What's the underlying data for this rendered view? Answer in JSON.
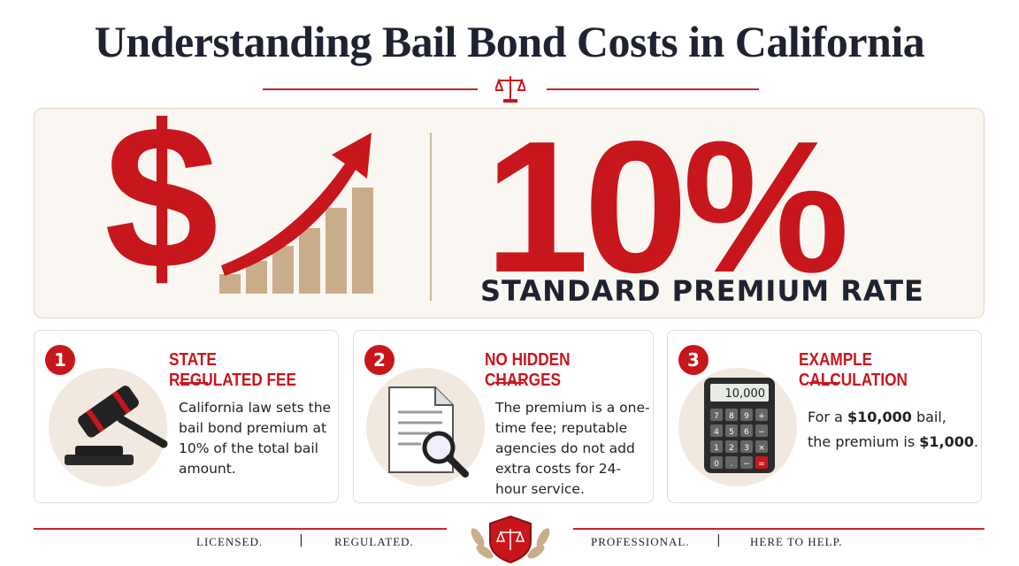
{
  "title": "Understanding Bail Bond Costs in California",
  "hero": {
    "symbol": "$",
    "rate": "10%",
    "caption": "STANDARD PREMIUM RATE"
  },
  "cards": [
    {
      "number": "1",
      "title": "STATE REGULATED FEE",
      "body": "California law sets the bail bond premium at 10% of the total bail amount."
    },
    {
      "number": "2",
      "title": "NO HIDDEN CHARGES",
      "body": "The premium is a one-time fee; reputable agencies do not add extra costs for 24-hour service."
    },
    {
      "number": "3",
      "title": "EXAMPLE CALCULATION",
      "body_parts": [
        "For a ",
        "$10,000",
        " bail,",
        "the premium is ",
        "$1,000",
        "."
      ],
      "calculator": {
        "display": "10,000",
        "keys": [
          "7",
          "8",
          "9",
          "+",
          "4",
          "5",
          "6",
          "−",
          "1",
          "2",
          "3",
          "×",
          "0",
          ".",
          "−",
          "="
        ]
      }
    }
  ],
  "footer": [
    "LICENSED.",
    "REGULATED.",
    "PROFESSIONAL.",
    "HERE TO HELP."
  ]
}
